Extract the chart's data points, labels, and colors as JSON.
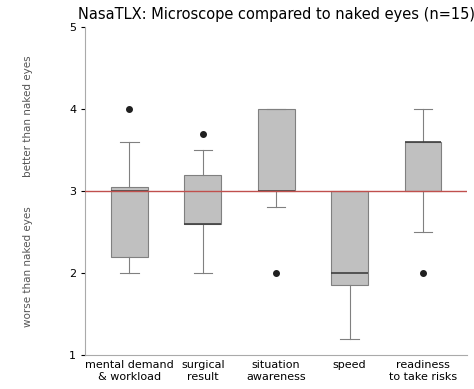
{
  "title": "NasaTLX: Microscope compared to naked eyes (n=15)",
  "ylabel_top": "better than naked eyes",
  "ylabel_bottom": "worse than naked eyes",
  "ylim": [
    1,
    5
  ],
  "yticks": [
    1,
    2,
    3,
    4,
    5
  ],
  "reference_line": 3.0,
  "reference_line_color": "#c0504d",
  "categories": [
    "mental demand\n& workload",
    "surgical\nresult",
    "situation\nawareness",
    "speed",
    "readiness\nto take risks"
  ],
  "box_color": "#c0c0c0",
  "box_edge_color": "#808080",
  "median_color": "#404040",
  "whisker_color": "#808080",
  "cap_color": "#808080",
  "flier_color": "#202020",
  "boxes": [
    {
      "q1": 2.2,
      "median": 3.0,
      "q3": 3.05,
      "whislo": 2.0,
      "whishi": 3.6,
      "fliers": [
        4.0
      ]
    },
    {
      "q1": 2.6,
      "median": 2.6,
      "q3": 3.2,
      "whislo": 2.0,
      "whishi": 3.5,
      "fliers": [
        3.7
      ]
    },
    {
      "q1": 3.0,
      "median": 3.0,
      "q3": 4.0,
      "whislo": 2.8,
      "whishi": 4.0,
      "fliers": [
        2.0
      ]
    },
    {
      "q1": 1.85,
      "median": 2.0,
      "q3": 3.0,
      "whislo": 1.2,
      "whishi": 3.0,
      "fliers": []
    },
    {
      "q1": 3.0,
      "median": 3.6,
      "q3": 3.6,
      "whislo": 2.5,
      "whishi": 4.0,
      "fliers": [
        2.0
      ]
    }
  ],
  "background_color": "#ffffff",
  "plot_bg_color": "#ffffff",
  "title_fontsize": 10.5,
  "label_fontsize": 7.5,
  "tick_fontsize": 8
}
